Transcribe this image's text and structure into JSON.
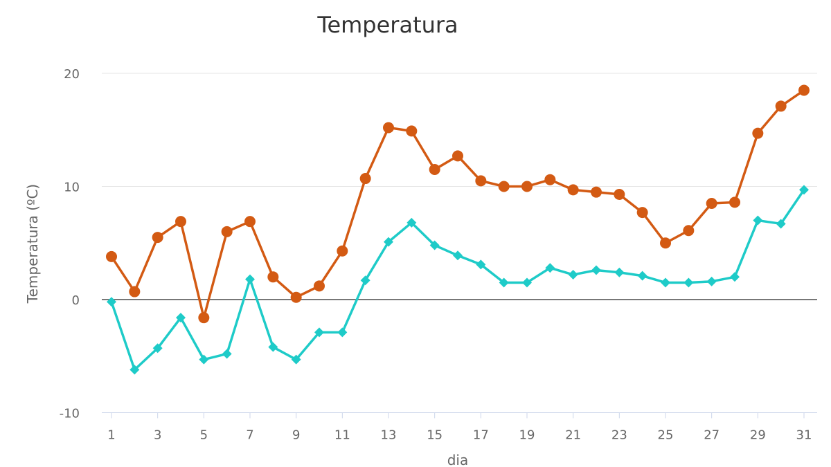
{
  "chart_data": {
    "type": "line",
    "title": "Temperatura",
    "xlabel": "dia",
    "ylabel": "Temperatura (ºC)",
    "ylim": [
      -10,
      20
    ],
    "yticks": [
      "-10",
      "0",
      "10",
      "20"
    ],
    "xticks": [
      "1",
      "3",
      "5",
      "7",
      "9",
      "11",
      "13",
      "15",
      "17",
      "19",
      "21",
      "23",
      "25",
      "27",
      "29",
      "31"
    ],
    "grid": true,
    "x": [
      1,
      2,
      3,
      4,
      5,
      6,
      7,
      8,
      9,
      10,
      11,
      12,
      13,
      14,
      15,
      16,
      17,
      18,
      19,
      20,
      21,
      22,
      23,
      24,
      25,
      26,
      27,
      28,
      29,
      30,
      31
    ],
    "series": [
      {
        "color": "#d35a13",
        "marker": "circle",
        "values": [
          3.8,
          0.7,
          5.5,
          6.9,
          -1.6,
          6.0,
          6.9,
          2.0,
          0.2,
          1.2,
          4.3,
          10.7,
          15.2,
          14.9,
          11.5,
          12.7,
          10.5,
          10.0,
          10.0,
          10.6,
          9.7,
          9.5,
          9.3,
          7.7,
          5.0,
          6.1,
          8.5,
          8.6,
          14.7,
          17.1,
          18.5
        ]
      },
      {
        "color": "#1ecbc8",
        "marker": "diamond",
        "values": [
          -0.2,
          -6.2,
          -4.3,
          -1.6,
          -5.3,
          -4.8,
          1.8,
          -4.2,
          -5.3,
          -2.9,
          -2.9,
          1.7,
          5.1,
          6.8,
          4.8,
          3.9,
          3.1,
          1.5,
          1.5,
          2.8,
          2.2,
          2.6,
          2.4,
          2.1,
          1.5,
          1.5,
          1.6,
          2.0,
          7.0,
          6.7,
          9.7
        ]
      }
    ]
  }
}
